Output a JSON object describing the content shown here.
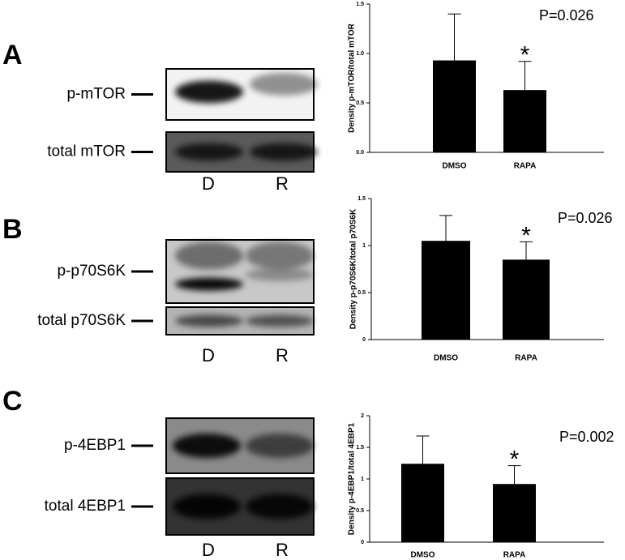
{
  "panels": [
    {
      "letter": "A",
      "blots": [
        "p-mTOR",
        "total mTOR"
      ],
      "lanes": [
        "D",
        "R"
      ]
    },
    {
      "letter": "B",
      "blots": [
        "p-p70S6K",
        "total p70S6K"
      ],
      "lanes": [
        "D",
        "R"
      ]
    },
    {
      "letter": "C",
      "blots": [
        "p-4EBP1",
        "total 4EBP1"
      ],
      "lanes": [
        "D",
        "R"
      ]
    }
  ],
  "chart_data": [
    {
      "type": "bar",
      "y_label": "Density p-mTOR/total mTOR",
      "annotation": "P=0.026",
      "marker": "*",
      "categories": [
        "DMSO",
        "RAPA"
      ],
      "series": [
        {
          "color": "#000000",
          "values": [
            0.93,
            0.63
          ],
          "errors": [
            0.47,
            0.29
          ]
        }
      ],
      "ylim": [
        0,
        1.5
      ],
      "yticks": [
        {
          "value": 0,
          "label": "0.0"
        },
        {
          "value": 0.5,
          "label": "0.5"
        },
        {
          "value": 1,
          "label": "1.0"
        },
        {
          "value": 1.5,
          "label": "1.5"
        }
      ]
    },
    {
      "type": "bar",
      "y_label": "Density p-p70S6K/total p70S6K",
      "annotation": "P=0.026",
      "marker": "*",
      "categories": [
        "DMSO",
        "RAPA"
      ],
      "series": [
        {
          "color": "#000000",
          "values": [
            1.05,
            0.85
          ],
          "errors": [
            0.27,
            0.19
          ]
        }
      ],
      "ylim": [
        0,
        1.5
      ],
      "yticks": [
        0,
        0.5,
        1,
        1.5
      ]
    },
    {
      "type": "bar",
      "y_label": "Density p-4EBP1/total 4EBP1",
      "annotation": "P=0.002",
      "marker": "*",
      "categories": [
        "DMSO",
        "RAPA"
      ],
      "series": [
        {
          "color": "#000000",
          "values": [
            1.24,
            0.92
          ],
          "errors": [
            0.44,
            0.29
          ]
        }
      ],
      "ylim": [
        0,
        2
      ],
      "yticks": [
        0,
        0.5,
        1,
        1.5,
        2
      ]
    }
  ]
}
